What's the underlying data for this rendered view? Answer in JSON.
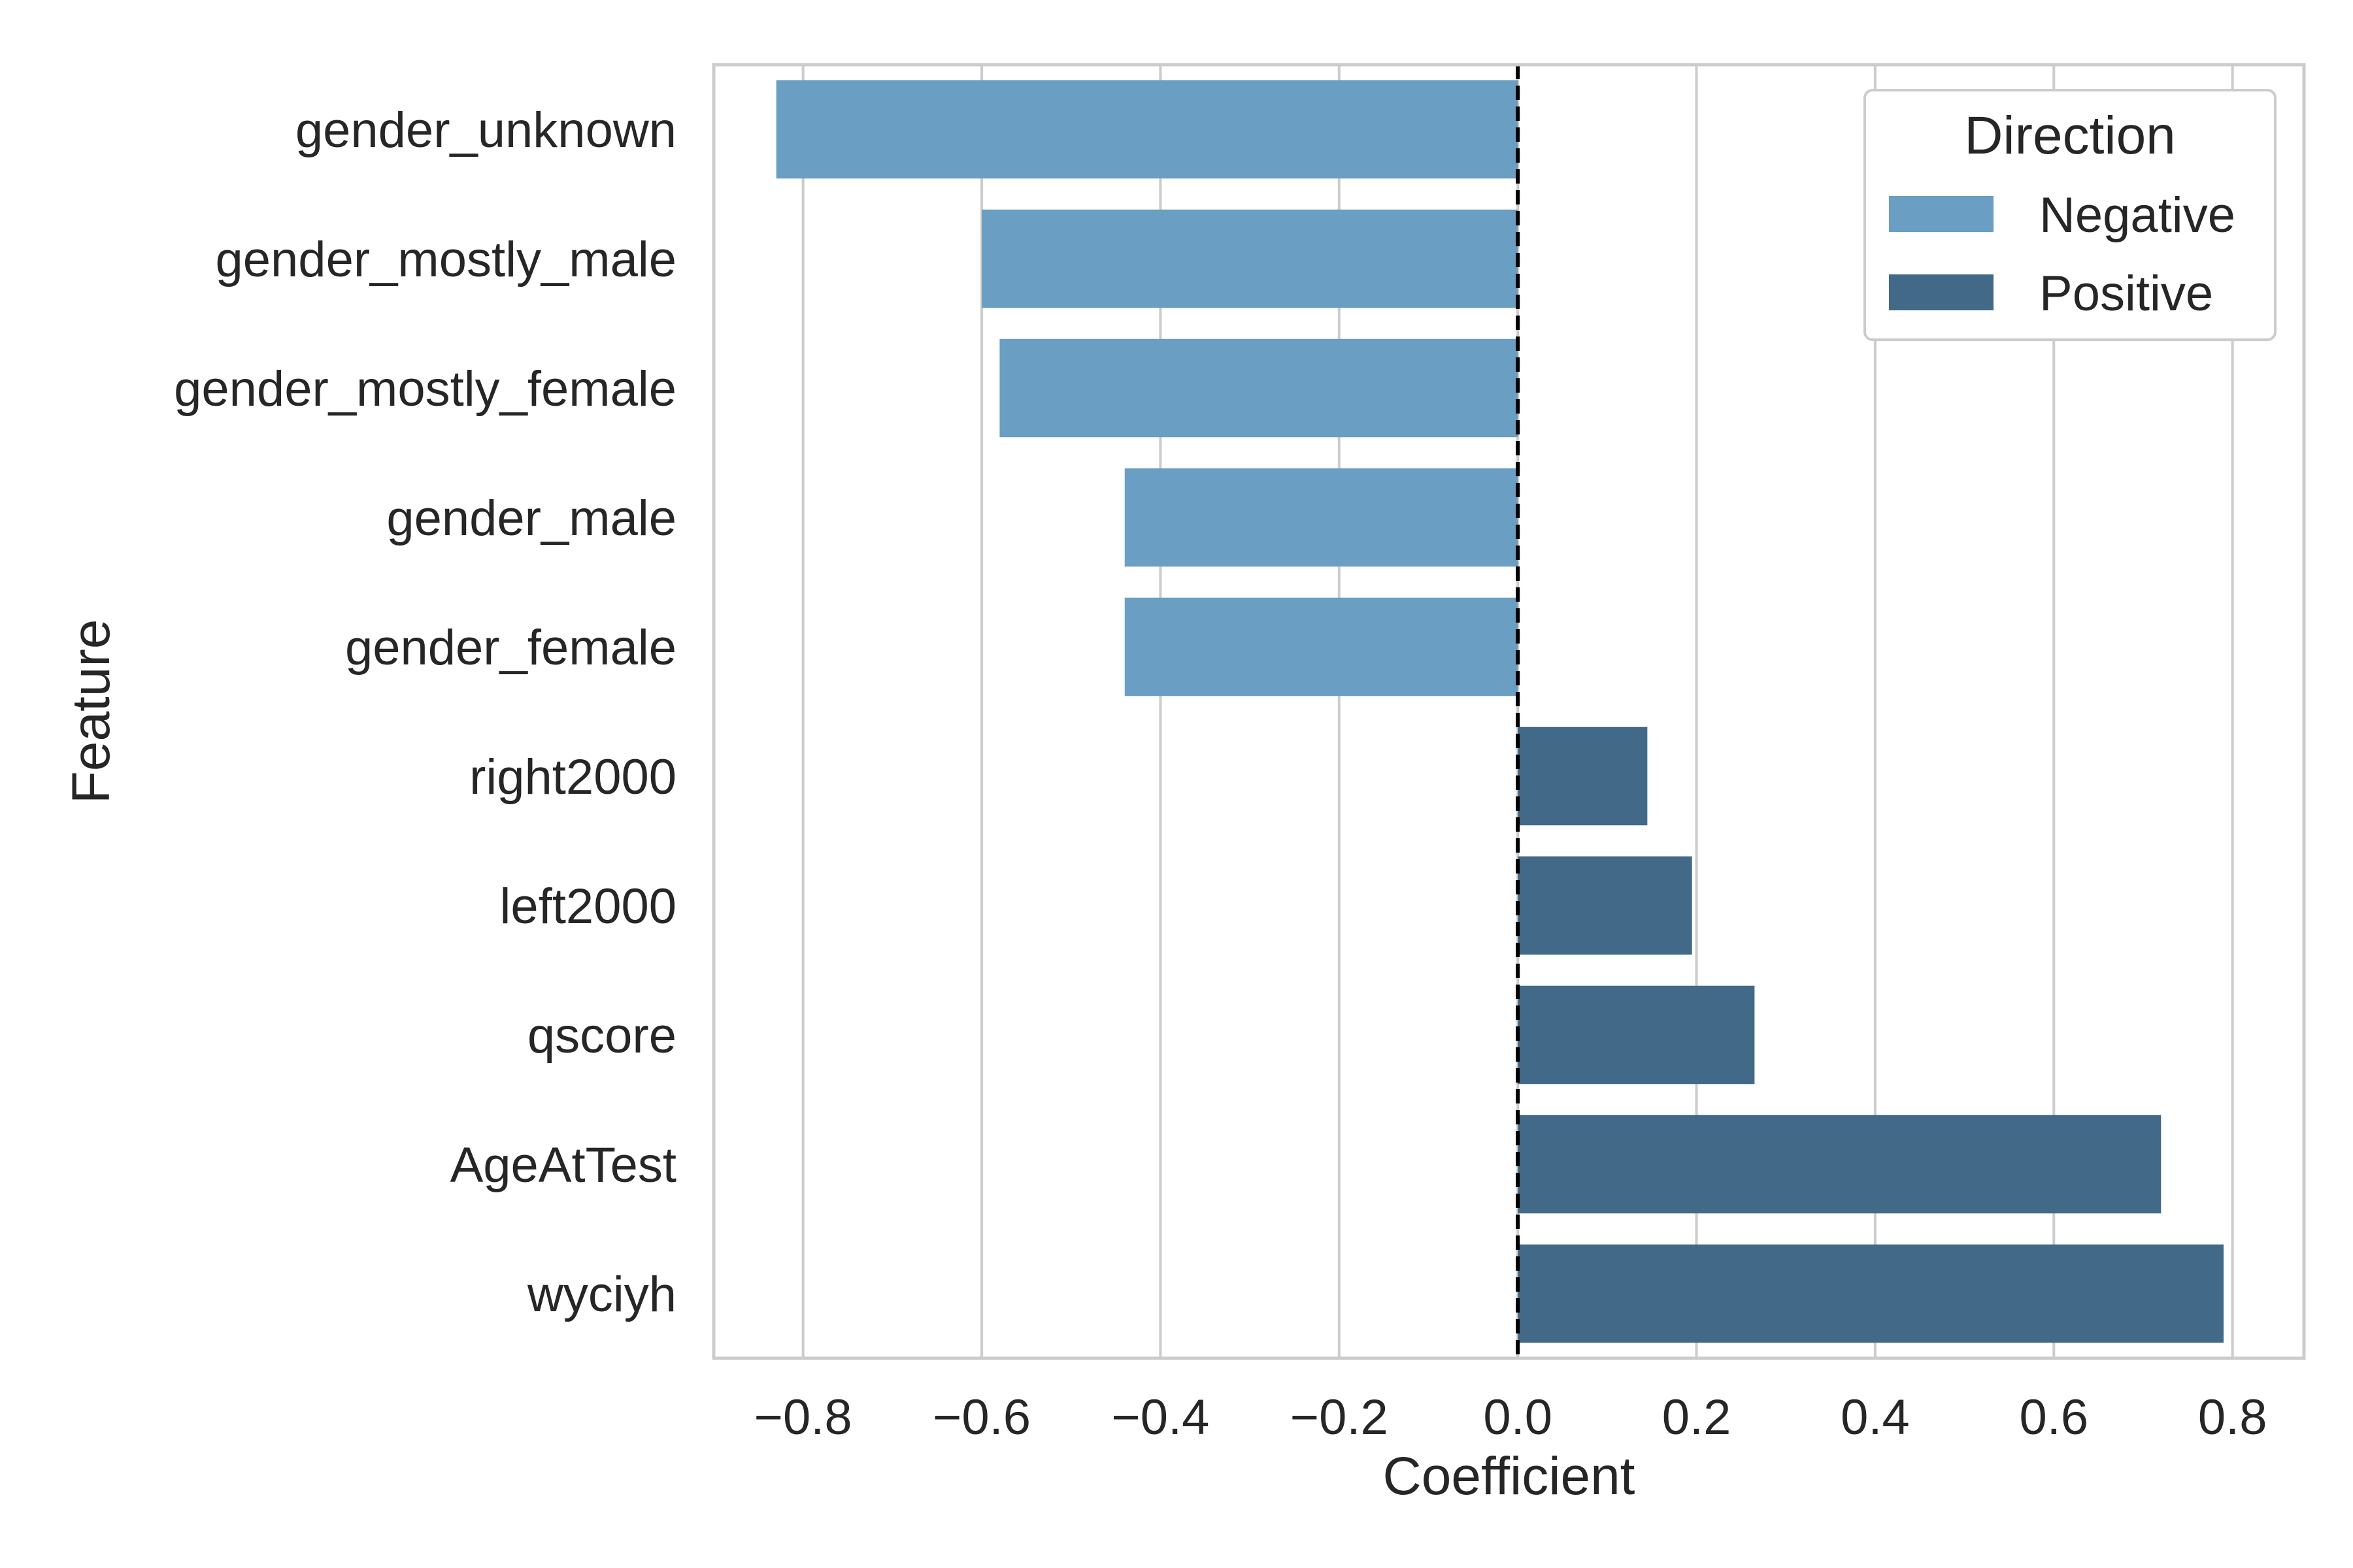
{
  "chart_data": {
    "type": "bar",
    "orientation": "horizontal",
    "title": "",
    "xlabel": "Coefficient",
    "ylabel": "Feature",
    "xlim": [
      -0.9,
      0.88
    ],
    "xticks": [
      -0.8,
      -0.6,
      -0.4,
      -0.2,
      0.0,
      0.2,
      0.4,
      0.6,
      0.8
    ],
    "xtick_labels": [
      "−0.8",
      "−0.6",
      "−0.4",
      "−0.2",
      "0.0",
      "0.2",
      "0.4",
      "0.6",
      "0.8"
    ],
    "grid": "vertical",
    "reference_line": {
      "x": 0.0,
      "style": "dashed",
      "color": "#000000"
    },
    "categories": [
      "gender_unknown",
      "gender_mostly_male",
      "gender_mostly_female",
      "gender_male",
      "gender_female",
      "right2000",
      "left2000",
      "qscore",
      "AgeAtTest",
      "wyciyh"
    ],
    "values": [
      -0.83,
      -0.6,
      -0.58,
      -0.44,
      -0.44,
      0.145,
      0.195,
      0.265,
      0.72,
      0.79
    ],
    "directions": [
      "Negative",
      "Negative",
      "Negative",
      "Negative",
      "Negative",
      "Positive",
      "Positive",
      "Positive",
      "Positive",
      "Positive"
    ],
    "legend": {
      "title": "Direction",
      "placement": "top-right",
      "entries": [
        {
          "label": "Negative",
          "color": "#6a9ec2"
        },
        {
          "label": "Positive",
          "color": "#426987"
        }
      ]
    }
  }
}
